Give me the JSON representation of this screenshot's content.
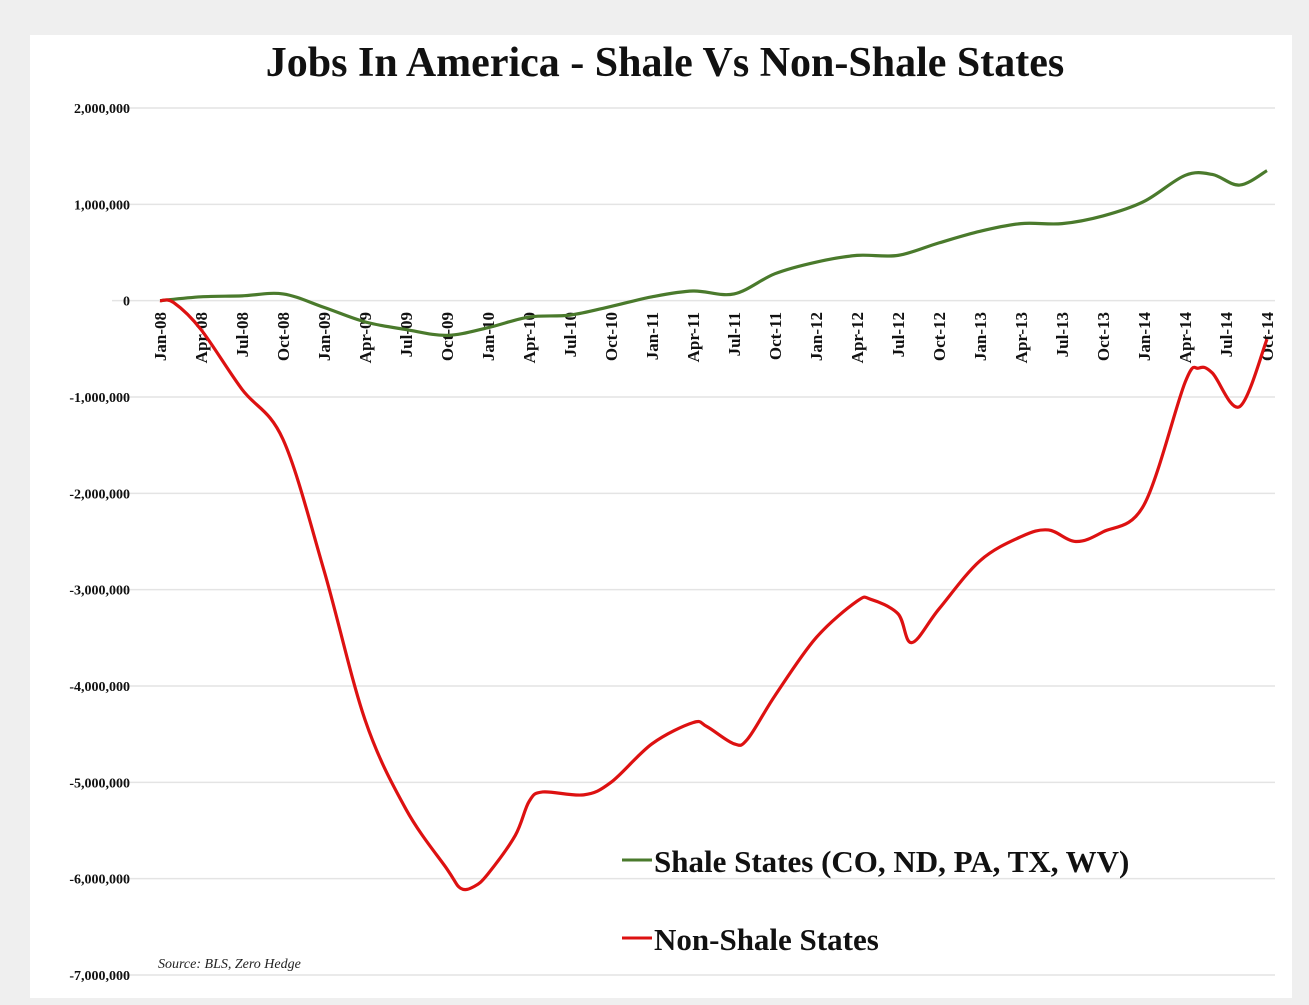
{
  "chart_data": {
    "type": "line",
    "title": "Jobs In America - Shale Vs Non-Shale States",
    "xlabel": "",
    "ylabel": "",
    "ylim": [
      -7000000,
      2000000
    ],
    "yticks": [
      2000000,
      1000000,
      0,
      -1000000,
      -2000000,
      -3000000,
      -4000000,
      -5000000,
      -6000000,
      -7000000
    ],
    "ytick_labels": [
      "2,000,000",
      "1,000,000",
      "0",
      "-1,000,000",
      "-2,000,000",
      "-3,000,000",
      "-4,000,000",
      "-5,000,000",
      "-6,000,000",
      "-7,000,000"
    ],
    "xrange": [
      "2008-01",
      "2014-10"
    ],
    "xtick_labels": [
      "Jan-08",
      "Apr-08",
      "Jul-08",
      "Oct-08",
      "Jan-09",
      "Apr-09",
      "Jul-09",
      "Oct-09",
      "Jan-10",
      "Apr-10",
      "Jul-10",
      "Oct-10",
      "Jan-11",
      "Apr-11",
      "Jul-11",
      "Oct-11",
      "Jan-12",
      "Apr-12",
      "Jul-12",
      "Oct-12",
      "Jan-13",
      "Apr-13",
      "Jul-13",
      "Oct-13",
      "Jan-14",
      "Apr-14",
      "Jul-14",
      "Oct-14"
    ],
    "grid": true,
    "legend_position": "bottom-right",
    "series": [
      {
        "name": "Shale States (CO, ND, PA, TX, WV)",
        "color": "#4a7a2c",
        "points": [
          [
            "2008-01",
            0
          ],
          [
            "2008-04",
            40000
          ],
          [
            "2008-07",
            50000
          ],
          [
            "2008-10",
            70000
          ],
          [
            "2009-01",
            -70000
          ],
          [
            "2009-04",
            -220000
          ],
          [
            "2009-07",
            -300000
          ],
          [
            "2009-10",
            -360000
          ],
          [
            "2010-01",
            -280000
          ],
          [
            "2010-04",
            -170000
          ],
          [
            "2010-07",
            -150000
          ],
          [
            "2010-10",
            -60000
          ],
          [
            "2011-01",
            40000
          ],
          [
            "2011-04",
            100000
          ],
          [
            "2011-07",
            70000
          ],
          [
            "2011-10",
            280000
          ],
          [
            "2012-01",
            400000
          ],
          [
            "2012-04",
            470000
          ],
          [
            "2012-07",
            470000
          ],
          [
            "2012-10",
            600000
          ],
          [
            "2013-01",
            720000
          ],
          [
            "2013-04",
            800000
          ],
          [
            "2013-07",
            800000
          ],
          [
            "2013-10",
            880000
          ],
          [
            "2014-01",
            1030000
          ],
          [
            "2014-04",
            1300000
          ],
          [
            "2014-06",
            1310000
          ],
          [
            "2014-08",
            1200000
          ],
          [
            "2014-10",
            1350000
          ]
        ]
      },
      {
        "name": "Non-Shale States",
        "color": "#dd1111",
        "points": [
          [
            "2008-01",
            0
          ],
          [
            "2008-02",
            -20000
          ],
          [
            "2008-04",
            -300000
          ],
          [
            "2008-07",
            -920000
          ],
          [
            "2008-10",
            -1440000
          ],
          [
            "2009-01",
            -2800000
          ],
          [
            "2009-04",
            -4350000
          ],
          [
            "2009-07",
            -5280000
          ],
          [
            "2009-10",
            -5900000
          ],
          [
            "2009-11",
            -6100000
          ],
          [
            "2009-12",
            -6080000
          ],
          [
            "2010-01",
            -5950000
          ],
          [
            "2010-03",
            -5550000
          ],
          [
            "2010-04",
            -5200000
          ],
          [
            "2010-05",
            -5100000
          ],
          [
            "2010-08",
            -5130000
          ],
          [
            "2010-10",
            -5000000
          ],
          [
            "2011-01",
            -4600000
          ],
          [
            "2011-04",
            -4380000
          ],
          [
            "2011-05",
            -4420000
          ],
          [
            "2011-07",
            -4600000
          ],
          [
            "2011-08",
            -4550000
          ],
          [
            "2011-10",
            -4100000
          ],
          [
            "2012-01",
            -3500000
          ],
          [
            "2012-04",
            -3120000
          ],
          [
            "2012-05",
            -3100000
          ],
          [
            "2012-07",
            -3250000
          ],
          [
            "2012-08",
            -3550000
          ],
          [
            "2012-10",
            -3200000
          ],
          [
            "2013-01",
            -2700000
          ],
          [
            "2013-04",
            -2450000
          ],
          [
            "2013-06",
            -2380000
          ],
          [
            "2013-08",
            -2500000
          ],
          [
            "2013-10",
            -2400000
          ],
          [
            "2014-01",
            -2120000
          ],
          [
            "2014-04",
            -850000
          ],
          [
            "2014-05",
            -700000
          ],
          [
            "2014-06",
            -750000
          ],
          [
            "2014-08",
            -1100000
          ],
          [
            "2014-10",
            -400000
          ]
        ]
      }
    ],
    "source": "Source: BLS, Zero Hedge"
  }
}
